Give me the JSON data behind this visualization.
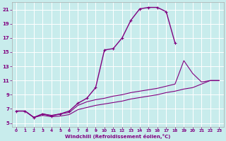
{
  "xlabel": "Windchill (Refroidissement éolien,°C)",
  "bg_color": "#c8ecec",
  "line_color": "#800080",
  "grid_color": "#ffffff",
  "xlim": [
    -0.5,
    23.5
  ],
  "ylim": [
    4.5,
    22
  ],
  "xticks": [
    0,
    1,
    2,
    3,
    4,
    5,
    6,
    7,
    8,
    9,
    10,
    11,
    12,
    13,
    14,
    15,
    16,
    17,
    18,
    19,
    20,
    21,
    22,
    23
  ],
  "yticks": [
    5,
    7,
    9,
    11,
    13,
    15,
    17,
    19,
    21
  ],
  "lines": [
    {
      "x": [
        0,
        1,
        2,
        3,
        4,
        5,
        6,
        7,
        8,
        9,
        10,
        11,
        12,
        13,
        14,
        15,
        16,
        17,
        18
      ],
      "y": [
        6.7,
        6.7,
        5.8,
        6.3,
        6.0,
        6.3,
        6.7,
        7.8,
        8.5,
        10.0,
        15.3,
        15.5,
        17.0,
        19.5,
        21.1,
        21.3,
        21.3,
        20.7,
        16.3
      ],
      "marker": "+",
      "marker_size": 3.5,
      "linewidth": 1.0
    },
    {
      "x": [
        0,
        1,
        2,
        3,
        4,
        5,
        6,
        7,
        8,
        9,
        10,
        11,
        12,
        13,
        14,
        15,
        16,
        17,
        18,
        19,
        20,
        21,
        22,
        23
      ],
      "y": [
        6.7,
        6.7,
        5.8,
        6.3,
        6.1,
        6.3,
        6.5,
        7.5,
        8.0,
        8.3,
        8.5,
        8.8,
        9.0,
        9.3,
        9.5,
        9.7,
        9.9,
        10.2,
        10.5,
        13.8,
        12.0,
        10.8,
        11.0,
        11.0
      ],
      "marker": null,
      "linewidth": 0.8
    },
    {
      "x": [
        0,
        1,
        2,
        3,
        4,
        5,
        6,
        7,
        8,
        9,
        10,
        11,
        12,
        13,
        14,
        15,
        16,
        17,
        18,
        19,
        20,
        21,
        22,
        23
      ],
      "y": [
        6.7,
        6.7,
        5.8,
        6.1,
        5.9,
        6.0,
        6.2,
        6.9,
        7.2,
        7.5,
        7.7,
        7.9,
        8.1,
        8.4,
        8.6,
        8.8,
        9.0,
        9.3,
        9.5,
        9.8,
        10.0,
        10.5,
        11.0,
        11.0
      ],
      "marker": null,
      "linewidth": 0.8
    }
  ]
}
